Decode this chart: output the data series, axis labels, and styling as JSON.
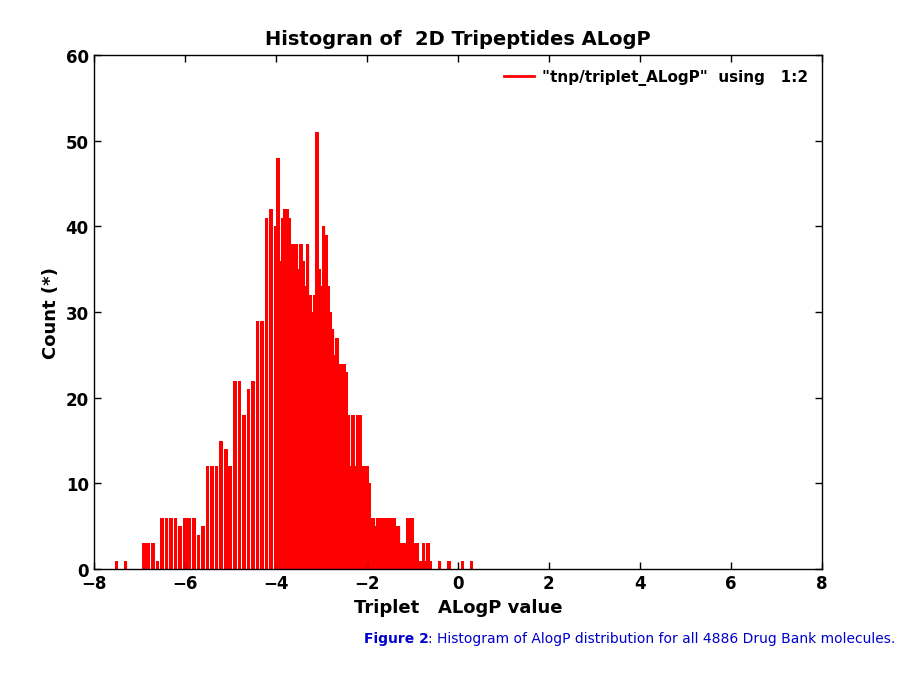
{
  "title": "Histogran of  2D Tripeptides ALogP",
  "xlabel": "Triplet   ALogP value",
  "ylabel": "Count (*)",
  "xlim": [
    -8,
    8
  ],
  "ylim": [
    0,
    60
  ],
  "xticks": [
    -8,
    -6,
    -4,
    -2,
    0,
    2,
    4,
    6,
    8
  ],
  "yticks": [
    0,
    10,
    20,
    30,
    40,
    50,
    60
  ],
  "bar_color": "#ff0000",
  "legend_label": "\"tnp/triplet_ALogP\"  using   1:2",
  "caption_bold": "Figure 2",
  "caption_normal": ": Histogram of AlogP distribution for all 4886 Drug Bank molecules.",
  "caption_color": "#0000cc",
  "background_color": "#ffffff",
  "bar_values": [
    [
      -7.5,
      1
    ],
    [
      -7.3,
      1
    ],
    [
      -7.1,
      0
    ],
    [
      -6.9,
      3
    ],
    [
      -6.8,
      3
    ],
    [
      -6.7,
      3
    ],
    [
      -6.6,
      1
    ],
    [
      -6.5,
      6
    ],
    [
      -6.4,
      6
    ],
    [
      -6.3,
      6
    ],
    [
      -6.2,
      6
    ],
    [
      -6.1,
      5
    ],
    [
      -6.0,
      6
    ],
    [
      -5.9,
      6
    ],
    [
      -5.8,
      6
    ],
    [
      -5.7,
      4
    ],
    [
      -5.6,
      5
    ],
    [
      -5.5,
      12
    ],
    [
      -5.4,
      12
    ],
    [
      -5.3,
      12
    ],
    [
      -5.2,
      15
    ],
    [
      -5.1,
      14
    ],
    [
      -5.0,
      12
    ],
    [
      -4.9,
      22
    ],
    [
      -4.8,
      22
    ],
    [
      -4.7,
      18
    ],
    [
      -4.6,
      21
    ],
    [
      -4.5,
      22
    ],
    [
      -4.4,
      29
    ],
    [
      -4.3,
      29
    ],
    [
      -4.2,
      41
    ],
    [
      -4.1,
      42
    ],
    [
      -4.0,
      40
    ],
    [
      -3.95,
      48
    ],
    [
      -3.9,
      36
    ],
    [
      -3.85,
      41
    ],
    [
      -3.8,
      42
    ],
    [
      -3.75,
      42
    ],
    [
      -3.7,
      41
    ],
    [
      -3.65,
      38
    ],
    [
      -3.6,
      38
    ],
    [
      -3.55,
      38
    ],
    [
      -3.5,
      35
    ],
    [
      -3.45,
      38
    ],
    [
      -3.4,
      36
    ],
    [
      -3.35,
      33
    ],
    [
      -3.3,
      38
    ],
    [
      -3.25,
      32
    ],
    [
      -3.2,
      30
    ],
    [
      -3.15,
      32
    ],
    [
      -3.1,
      51
    ],
    [
      -3.05,
      35
    ],
    [
      -3.0,
      33
    ],
    [
      -2.95,
      40
    ],
    [
      -2.9,
      39
    ],
    [
      -2.85,
      33
    ],
    [
      -2.8,
      30
    ],
    [
      -2.75,
      28
    ],
    [
      -2.7,
      25
    ],
    [
      -2.65,
      27
    ],
    [
      -2.6,
      24
    ],
    [
      -2.55,
      24
    ],
    [
      -2.5,
      24
    ],
    [
      -2.45,
      23
    ],
    [
      -2.4,
      18
    ],
    [
      -2.35,
      12
    ],
    [
      -2.3,
      18
    ],
    [
      -2.25,
      12
    ],
    [
      -2.2,
      18
    ],
    [
      -2.15,
      18
    ],
    [
      -2.1,
      12
    ],
    [
      -2.05,
      12
    ],
    [
      -2.0,
      12
    ],
    [
      -1.95,
      10
    ],
    [
      -1.9,
      6
    ],
    [
      -1.85,
      6
    ],
    [
      -1.8,
      5
    ],
    [
      -1.75,
      6
    ],
    [
      -1.7,
      6
    ],
    [
      -1.65,
      6
    ],
    [
      -1.6,
      5
    ],
    [
      -1.55,
      6
    ],
    [
      -1.5,
      6
    ],
    [
      -1.45,
      6
    ],
    [
      -1.4,
      6
    ],
    [
      -1.35,
      5
    ],
    [
      -1.3,
      5
    ],
    [
      -1.25,
      3
    ],
    [
      -1.2,
      3
    ],
    [
      -1.15,
      3
    ],
    [
      -1.1,
      6
    ],
    [
      -1.05,
      6
    ],
    [
      -1.0,
      6
    ],
    [
      -0.95,
      3
    ],
    [
      -0.9,
      3
    ],
    [
      -0.85,
      1
    ],
    [
      -0.8,
      1
    ],
    [
      -0.75,
      3
    ],
    [
      -0.7,
      1
    ],
    [
      -0.65,
      3
    ],
    [
      -0.6,
      1
    ],
    [
      -0.4,
      1
    ],
    [
      -0.2,
      1
    ],
    [
      0.1,
      1
    ],
    [
      0.3,
      1
    ]
  ]
}
